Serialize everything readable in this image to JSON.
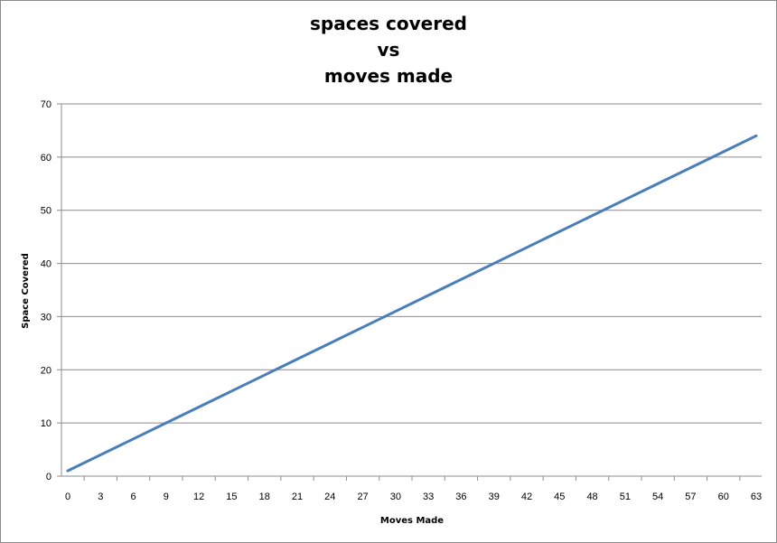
{
  "chart_data": {
    "type": "line",
    "title_lines": [
      "spaces covered",
      "vs",
      "moves made"
    ],
    "xlabel": "Moves Made",
    "ylabel": "Space Covered",
    "xlim": [
      0,
      63
    ],
    "ylim": [
      0,
      70
    ],
    "x_ticks": [
      0,
      3,
      6,
      9,
      12,
      15,
      18,
      21,
      24,
      27,
      30,
      33,
      36,
      39,
      42,
      45,
      48,
      51,
      54,
      57,
      60,
      63
    ],
    "y_ticks": [
      0,
      10,
      20,
      30,
      40,
      50,
      60,
      70
    ],
    "grid": true,
    "legend": "none",
    "series": [
      {
        "color": "#4a7ebb",
        "x": [
          0,
          3,
          6,
          9,
          12,
          15,
          18,
          21,
          24,
          27,
          30,
          33,
          36,
          39,
          42,
          45,
          48,
          51,
          54,
          57,
          60,
          63
        ],
        "y": [
          1,
          4,
          7,
          10,
          13,
          16,
          19,
          22,
          25,
          28,
          31,
          34,
          37,
          40,
          43,
          46,
          49,
          52,
          55,
          58,
          61,
          64
        ]
      }
    ]
  }
}
